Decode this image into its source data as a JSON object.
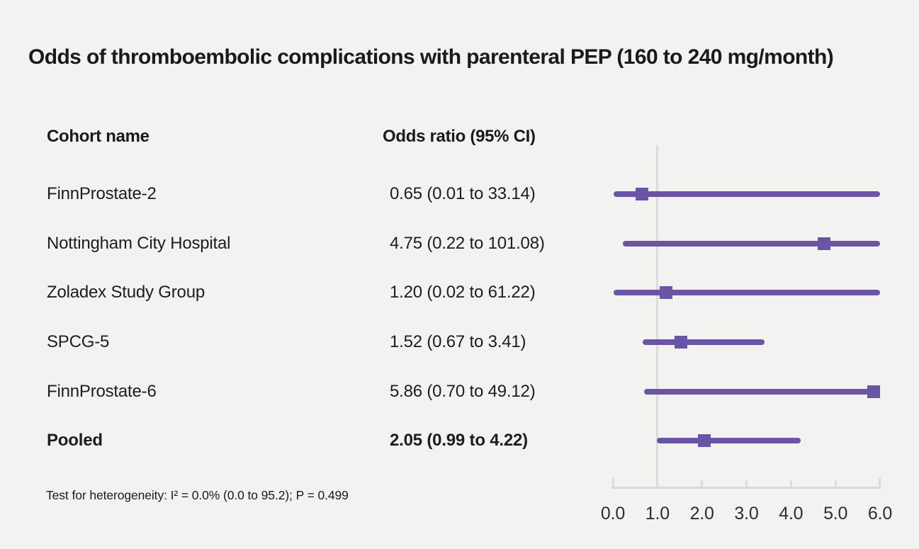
{
  "title": "Odds of thromboembolic complications with parenteral PEP (160 to 240 mg/month)",
  "columns": {
    "cohort_header": "Cohort name",
    "or_header": "Odds ratio (95% CI)"
  },
  "footnote": "Test for heterogeneity: I² = 0.0% (0.0 to 95.2); P = 0.499",
  "chart_data": {
    "type": "scatter",
    "subtype": "forest-plot",
    "title": "Odds of thromboembolic complications with parenteral PEP (160 to 240 mg/month)",
    "xlabel": "Odds ratio",
    "xlim": [
      0.0,
      6.0
    ],
    "x_tick_values": [
      0.0,
      1.0,
      2.0,
      3.0,
      4.0,
      5.0,
      6.0
    ],
    "x_tick_labels": [
      "0.0",
      "1.0",
      "2.0",
      "3.0",
      "4.0",
      "5.0",
      "6.0"
    ],
    "reference_line_x": 1.0,
    "grid": false,
    "legend": "none",
    "rows": [
      {
        "label": "FinnProstate-2",
        "value_text": "0.65 (0.01 to 33.14)",
        "or": 0.65,
        "ci_low": 0.01,
        "ci_high": 33.14,
        "bold": false
      },
      {
        "label": "Nottingham City Hospital",
        "value_text": "4.75 (0.22 to 101.08)",
        "or": 4.75,
        "ci_low": 0.22,
        "ci_high": 101.08,
        "bold": false
      },
      {
        "label": "Zoladex Study Group",
        "value_text": "1.20 (0.02 to 61.22)",
        "or": 1.2,
        "ci_low": 0.02,
        "ci_high": 61.22,
        "bold": false
      },
      {
        "label": "SPCG-5",
        "value_text": "1.52 (0.67 to 3.41)",
        "or": 1.52,
        "ci_low": 0.67,
        "ci_high": 3.41,
        "bold": false
      },
      {
        "label": "FinnProstate-6",
        "value_text": "5.86 (0.70 to 49.12)",
        "or": 5.86,
        "ci_low": 0.7,
        "ci_high": 49.12,
        "bold": false
      },
      {
        "label": "Pooled",
        "value_text": "2.05 (0.99 to 4.22)",
        "or": 2.05,
        "ci_low": 0.99,
        "ci_high": 4.22,
        "bold": true
      }
    ],
    "colors": {
      "marker_and_ci": "#6a54a4",
      "axis_and_reference": "#d7dce3",
      "background": "#f2f2f1",
      "text": "#1a1a1a"
    }
  }
}
